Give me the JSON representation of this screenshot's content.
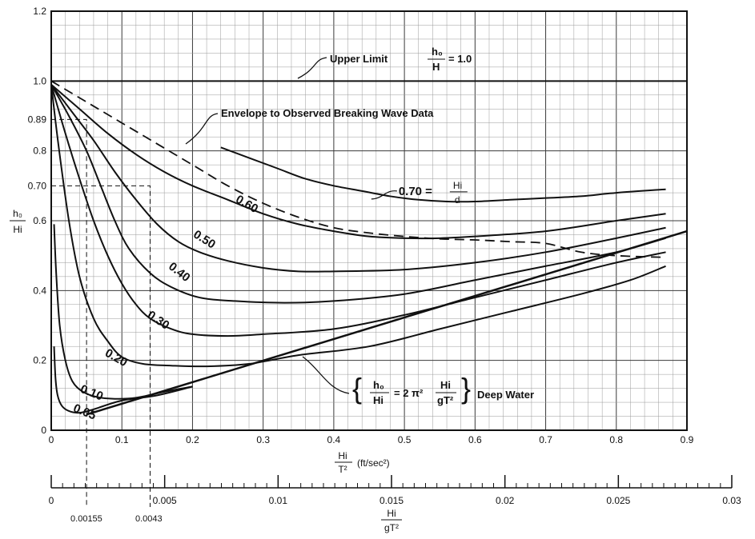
{
  "chart_data": {
    "type": "line",
    "title": "",
    "x_axis": {
      "label_num": "Hi",
      "label_den": "T²",
      "label_units": "(ft/sec²)",
      "range": [
        0,
        0.9
      ],
      "ticks": [
        {
          "v": 0,
          "label": "0"
        },
        {
          "v": 0.1,
          "label": "0.1"
        },
        {
          "v": 0.2,
          "label": "0.2"
        },
        {
          "v": 0.3,
          "label": "0.3"
        },
        {
          "v": 0.4,
          "label": "0.4"
        },
        {
          "v": 0.5,
          "label": "0.5"
        },
        {
          "v": 0.6,
          "label": "0.6"
        },
        {
          "v": 0.7,
          "label": "0.7"
        },
        {
          "v": 0.8,
          "label": "0.8"
        },
        {
          "v": 0.9,
          "label": "0.9"
        }
      ]
    },
    "y_axis": {
      "label_num": "h₀",
      "label_den": "Hi",
      "range": [
        0,
        1.2
      ],
      "ticks": [
        {
          "v": 0,
          "label": "0"
        },
        {
          "v": 0.2,
          "label": "0.2"
        },
        {
          "v": 0.4,
          "label": "0.4"
        },
        {
          "v": 0.6,
          "label": "0.6"
        },
        {
          "v": 0.7,
          "label": "0.70"
        },
        {
          "v": 0.8,
          "label": "0.8"
        },
        {
          "v": 0.89,
          "label": "0.89"
        },
        {
          "v": 1.0,
          "label": "1.0"
        },
        {
          "v": 1.2,
          "label": "1.2"
        }
      ]
    },
    "secondary_x_axis": {
      "label_num": "Hi",
      "label_den": "gT²",
      "range": [
        0,
        0.03
      ],
      "ticks": [
        {
          "v": 0,
          "label": "0"
        },
        {
          "v": 0.005,
          "label": "0.005"
        },
        {
          "v": 0.01,
          "label": "0.01"
        },
        {
          "v": 0.015,
          "label": "0.015"
        },
        {
          "v": 0.02,
          "label": "0.02"
        },
        {
          "v": 0.025,
          "label": "0.025"
        },
        {
          "v": 0.03,
          "label": "0.03"
        }
      ],
      "marked_values": [
        {
          "v": 0.00155,
          "label": "0.00155"
        },
        {
          "v": 0.0043,
          "label": "0.0043"
        }
      ]
    },
    "series": [
      {
        "name": "0.05",
        "label": "0.05",
        "label_pos": [
          0.03,
          0.055
        ],
        "points": [
          [
            0.004,
            0.24
          ],
          [
            0.006,
            0.15
          ],
          [
            0.009,
            0.1
          ],
          [
            0.015,
            0.07
          ],
          [
            0.025,
            0.055
          ],
          [
            0.04,
            0.05
          ],
          [
            0.06,
            0.06
          ],
          [
            0.1,
            0.085
          ],
          [
            0.15,
            0.1
          ],
          [
            0.2,
            0.125
          ]
        ]
      },
      {
        "name": "0.10",
        "label": "0.10",
        "label_pos": [
          0.04,
          0.11
        ],
        "points": [
          [
            0.004,
            0.59
          ],
          [
            0.007,
            0.45
          ],
          [
            0.012,
            0.3
          ],
          [
            0.02,
            0.2
          ],
          [
            0.03,
            0.14
          ],
          [
            0.045,
            0.11
          ],
          [
            0.065,
            0.095
          ],
          [
            0.09,
            0.09
          ],
          [
            0.12,
            0.093
          ],
          [
            0.16,
            0.11
          ],
          [
            0.2,
            0.125
          ]
        ]
      },
      {
        "name": "0.20",
        "label": "0.20",
        "label_pos": [
          0.075,
          0.215
        ],
        "points": [
          [
            0.0,
            0.99
          ],
          [
            0.01,
            0.82
          ],
          [
            0.025,
            0.6
          ],
          [
            0.04,
            0.44
          ],
          [
            0.06,
            0.32
          ],
          [
            0.08,
            0.255
          ],
          [
            0.1,
            0.21
          ],
          [
            0.13,
            0.19
          ],
          [
            0.17,
            0.185
          ],
          [
            0.22,
            0.183
          ],
          [
            0.28,
            0.19
          ],
          [
            0.35,
            0.215
          ],
          [
            0.45,
            0.24
          ],
          [
            0.55,
            0.29
          ],
          [
            0.65,
            0.34
          ],
          [
            0.75,
            0.39
          ],
          [
            0.82,
            0.43
          ],
          [
            0.87,
            0.47
          ]
        ]
      },
      {
        "name": "0.30",
        "label": "0.30",
        "label_pos": [
          0.135,
          0.325
        ],
        "points": [
          [
            0.0,
            0.99
          ],
          [
            0.02,
            0.85
          ],
          [
            0.04,
            0.72
          ],
          [
            0.06,
            0.6
          ],
          [
            0.08,
            0.5
          ],
          [
            0.1,
            0.42
          ],
          [
            0.12,
            0.36
          ],
          [
            0.14,
            0.32
          ],
          [
            0.17,
            0.29
          ],
          [
            0.2,
            0.275
          ],
          [
            0.25,
            0.27
          ],
          [
            0.3,
            0.275
          ],
          [
            0.4,
            0.29
          ],
          [
            0.5,
            0.33
          ],
          [
            0.6,
            0.38
          ],
          [
            0.7,
            0.43
          ],
          [
            0.8,
            0.48
          ],
          [
            0.87,
            0.51
          ]
        ]
      },
      {
        "name": "0.40",
        "label": "0.40",
        "label_pos": [
          0.165,
          0.465
        ],
        "points": [
          [
            0.0,
            0.99
          ],
          [
            0.025,
            0.9
          ],
          [
            0.05,
            0.8
          ],
          [
            0.07,
            0.7
          ],
          [
            0.09,
            0.6
          ],
          [
            0.11,
            0.52
          ],
          [
            0.14,
            0.45
          ],
          [
            0.17,
            0.41
          ],
          [
            0.21,
            0.38
          ],
          [
            0.26,
            0.37
          ],
          [
            0.33,
            0.365
          ],
          [
            0.4,
            0.37
          ],
          [
            0.5,
            0.39
          ],
          [
            0.6,
            0.43
          ],
          [
            0.7,
            0.47
          ],
          [
            0.8,
            0.51
          ],
          [
            0.87,
            0.55
          ]
        ]
      },
      {
        "name": "0.50",
        "label": "0.50",
        "label_pos": [
          0.2,
          0.555
        ],
        "points": [
          [
            0.0,
            0.99
          ],
          [
            0.03,
            0.91
          ],
          [
            0.06,
            0.83
          ],
          [
            0.09,
            0.74
          ],
          [
            0.12,
            0.66
          ],
          [
            0.15,
            0.59
          ],
          [
            0.18,
            0.54
          ],
          [
            0.21,
            0.51
          ],
          [
            0.25,
            0.485
          ],
          [
            0.3,
            0.465
          ],
          [
            0.35,
            0.455
          ],
          [
            0.4,
            0.455
          ],
          [
            0.5,
            0.46
          ],
          [
            0.6,
            0.48
          ],
          [
            0.7,
            0.51
          ],
          [
            0.8,
            0.55
          ],
          [
            0.87,
            0.58
          ]
        ]
      },
      {
        "name": "0.60",
        "label": "0.60",
        "label_pos": [
          0.26,
          0.655
        ],
        "points": [
          [
            0.0,
            0.99
          ],
          [
            0.04,
            0.92
          ],
          [
            0.08,
            0.85
          ],
          [
            0.12,
            0.79
          ],
          [
            0.16,
            0.74
          ],
          [
            0.2,
            0.7
          ],
          [
            0.25,
            0.66
          ],
          [
            0.3,
            0.62
          ],
          [
            0.35,
            0.59
          ],
          [
            0.4,
            0.57
          ],
          [
            0.45,
            0.555
          ],
          [
            0.5,
            0.55
          ],
          [
            0.55,
            0.55
          ],
          [
            0.6,
            0.555
          ],
          [
            0.7,
            0.57
          ],
          [
            0.8,
            0.6
          ],
          [
            0.87,
            0.62
          ]
        ]
      },
      {
        "name": "0.70",
        "label": "0.70 = Hi / d",
        "label_pos": [
          0.46,
          0.685
        ],
        "points": [
          [
            0.24,
            0.81
          ],
          [
            0.28,
            0.78
          ],
          [
            0.32,
            0.75
          ],
          [
            0.36,
            0.72
          ],
          [
            0.4,
            0.7
          ],
          [
            0.44,
            0.685
          ],
          [
            0.48,
            0.67
          ],
          [
            0.52,
            0.66
          ],
          [
            0.56,
            0.655
          ],
          [
            0.6,
            0.655
          ],
          [
            0.65,
            0.66
          ],
          [
            0.7,
            0.665
          ],
          [
            0.75,
            0.67
          ],
          [
            0.8,
            0.68
          ],
          [
            0.87,
            0.69
          ]
        ]
      }
    ],
    "upper_limit": {
      "y": 1.0,
      "label": "Upper Limit",
      "fraction_num": "h₀",
      "fraction_den": "H",
      "value_text": "= 1.0"
    },
    "envelope": {
      "label": "Envelope to Observed Breaking Wave Data",
      "points": [
        [
          0.0,
          1.0
        ],
        [
          0.05,
          0.94
        ],
        [
          0.1,
          0.88
        ],
        [
          0.15,
          0.82
        ],
        [
          0.2,
          0.76
        ],
        [
          0.25,
          0.7
        ],
        [
          0.3,
          0.65
        ],
        [
          0.35,
          0.61
        ],
        [
          0.4,
          0.58
        ],
        [
          0.45,
          0.565
        ],
        [
          0.5,
          0.555
        ],
        [
          0.55,
          0.548
        ],
        [
          0.6,
          0.545
        ],
        [
          0.65,
          0.54
        ],
        [
          0.7,
          0.535
        ],
        [
          0.75,
          0.51
        ],
        [
          0.8,
          0.5
        ],
        [
          0.87,
          0.495
        ]
      ]
    },
    "deep_water": {
      "label": "Deep Water",
      "equation": "h₀/Hi = 2π² Hi/gT²",
      "points": [
        [
          0.05,
          0.045
        ],
        [
          0.9,
          0.57
        ]
      ]
    },
    "guide_lines": [
      {
        "x": 0.05,
        "y": 0.89
      },
      {
        "x": 0.14,
        "y": 0.7
      }
    ]
  }
}
